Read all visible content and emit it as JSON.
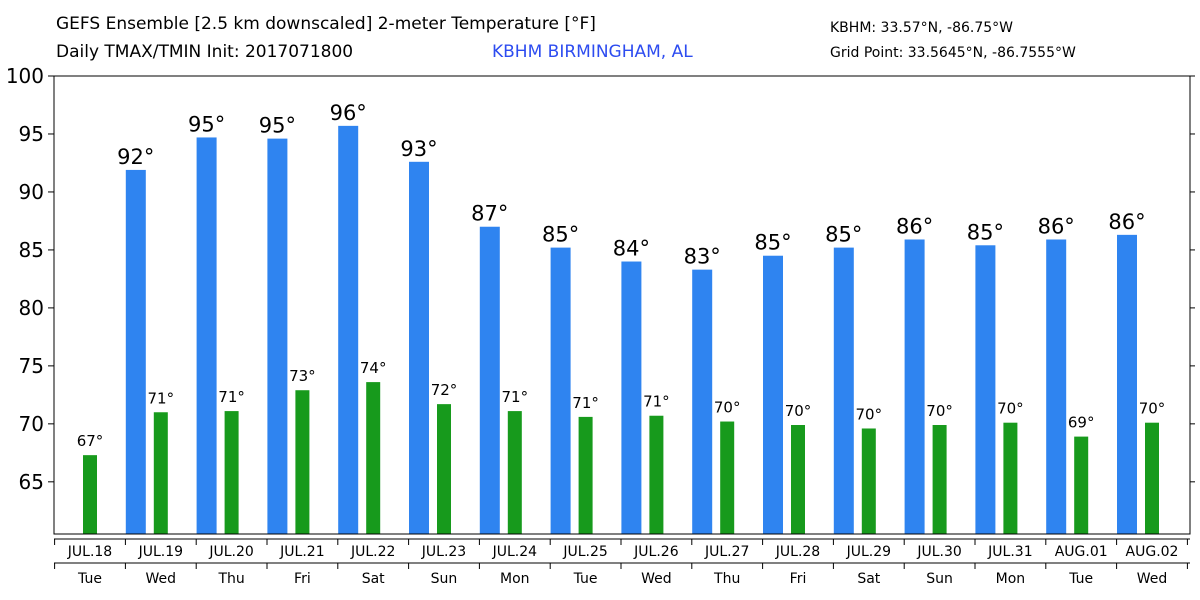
{
  "header": {
    "title_line1": "GEFS Ensemble [2.5 km downscaled] 2-meter Temperature [°F]",
    "title_line2": "Daily TMAX/TMIN Init: 2017071800",
    "station": "KBHM BIRMINGHAM, AL",
    "coords1": "KBHM: 33.57°N, -86.75°W",
    "coords2": "Grid Point: 33.5645°N, -86.7555°W"
  },
  "colors": {
    "tmax": "#2f84f0",
    "tmin": "#179a1c",
    "station": "#2d4cf0"
  },
  "chart_data": {
    "type": "bar",
    "title": "GEFS Ensemble [2.5 km downscaled] 2-meter Temperature [°F]",
    "ylim": [
      60.5,
      100
    ],
    "yticks": [
      65,
      70,
      75,
      80,
      85,
      90,
      95,
      100
    ],
    "grid": false,
    "categories": [
      "JUL.18",
      "JUL.19",
      "JUL.20",
      "JUL.21",
      "JUL.22",
      "JUL.23",
      "JUL.24",
      "JUL.25",
      "JUL.26",
      "JUL.27",
      "JUL.28",
      "JUL.29",
      "JUL.30",
      "JUL.31",
      "AUG.01",
      "AUG.02"
    ],
    "weekdays": [
      "Tue",
      "Wed",
      "Thu",
      "Fri",
      "Sat",
      "Sun",
      "Mon",
      "Tue",
      "Wed",
      "Thu",
      "Fri",
      "Sat",
      "Sun",
      "Mon",
      "Tue",
      "Wed"
    ],
    "series": [
      {
        "key": "tmax",
        "values": [
          null,
          91.9,
          94.7,
          94.6,
          95.7,
          92.6,
          87.0,
          85.2,
          84.0,
          83.3,
          84.5,
          85.2,
          85.9,
          85.4,
          85.9,
          86.3
        ],
        "labels": [
          "",
          "92°",
          "95°",
          "95°",
          "96°",
          "93°",
          "87°",
          "85°",
          "84°",
          "83°",
          "85°",
          "85°",
          "86°",
          "85°",
          "86°",
          "86°"
        ]
      },
      {
        "key": "tmin",
        "values": [
          67.3,
          71.0,
          71.1,
          72.9,
          73.6,
          71.7,
          71.1,
          70.6,
          70.7,
          70.2,
          69.9,
          69.6,
          69.9,
          70.1,
          68.9,
          70.1
        ],
        "labels": [
          "67°",
          "71°",
          "71°",
          "73°",
          "74°",
          "72°",
          "71°",
          "71°",
          "71°",
          "70°",
          "70°",
          "70°",
          "70°",
          "70°",
          "69°",
          "70°"
        ]
      }
    ]
  }
}
